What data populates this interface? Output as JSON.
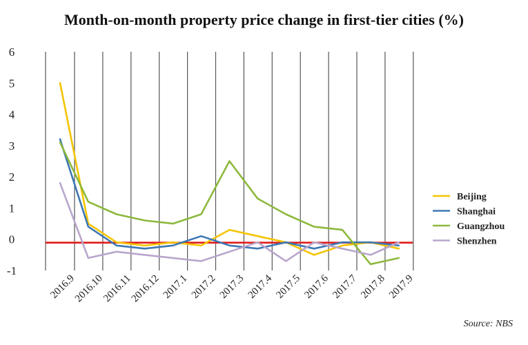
{
  "chart_data": {
    "type": "line",
    "title": "Month-on-month property price change in first-tier cities (%)",
    "categories": [
      "2016.9",
      "2016.10",
      "2016.11",
      "2016.12",
      "2017.1",
      "2017.2",
      "2017.3",
      "2017.4",
      "2017.5",
      "2017.6",
      "2017.7",
      "2017.8",
      "2017.9"
    ],
    "ylim": [
      -1,
      6
    ],
    "yticks": [
      6,
      5,
      4,
      3,
      2,
      1,
      0,
      -1
    ],
    "grid": true,
    "reference_line": {
      "y": 0,
      "color": "#e01b1b"
    },
    "legend_position": "right",
    "series": [
      {
        "name": "Beijing",
        "color": "#f5c400",
        "values": [
          5.0,
          0.5,
          -0.1,
          -0.2,
          -0.1,
          -0.2,
          0.3,
          0.1,
          -0.1,
          -0.5,
          -0.2,
          -0.1,
          -0.3
        ]
      },
      {
        "name": "Shanghai",
        "color": "#3d78b3",
        "values": [
          3.2,
          0.4,
          -0.2,
          -0.3,
          -0.2,
          0.1,
          -0.2,
          -0.3,
          -0.1,
          -0.3,
          -0.1,
          -0.1,
          -0.2
        ]
      },
      {
        "name": "Guangzhou",
        "color": "#8db83d",
        "values": [
          3.1,
          1.2,
          0.8,
          0.6,
          0.5,
          0.8,
          2.5,
          1.3,
          0.8,
          0.4,
          0.3,
          -0.8,
          -0.6
        ]
      },
      {
        "name": "Shenzhen",
        "color": "#b9a5cc",
        "values": [
          1.8,
          -0.6,
          -0.4,
          -0.5,
          -0.6,
          -0.7,
          -0.4,
          -0.1,
          -0.7,
          -0.1,
          -0.3,
          -0.5,
          -0.1
        ]
      }
    ]
  },
  "source_note": "Source: NBS"
}
